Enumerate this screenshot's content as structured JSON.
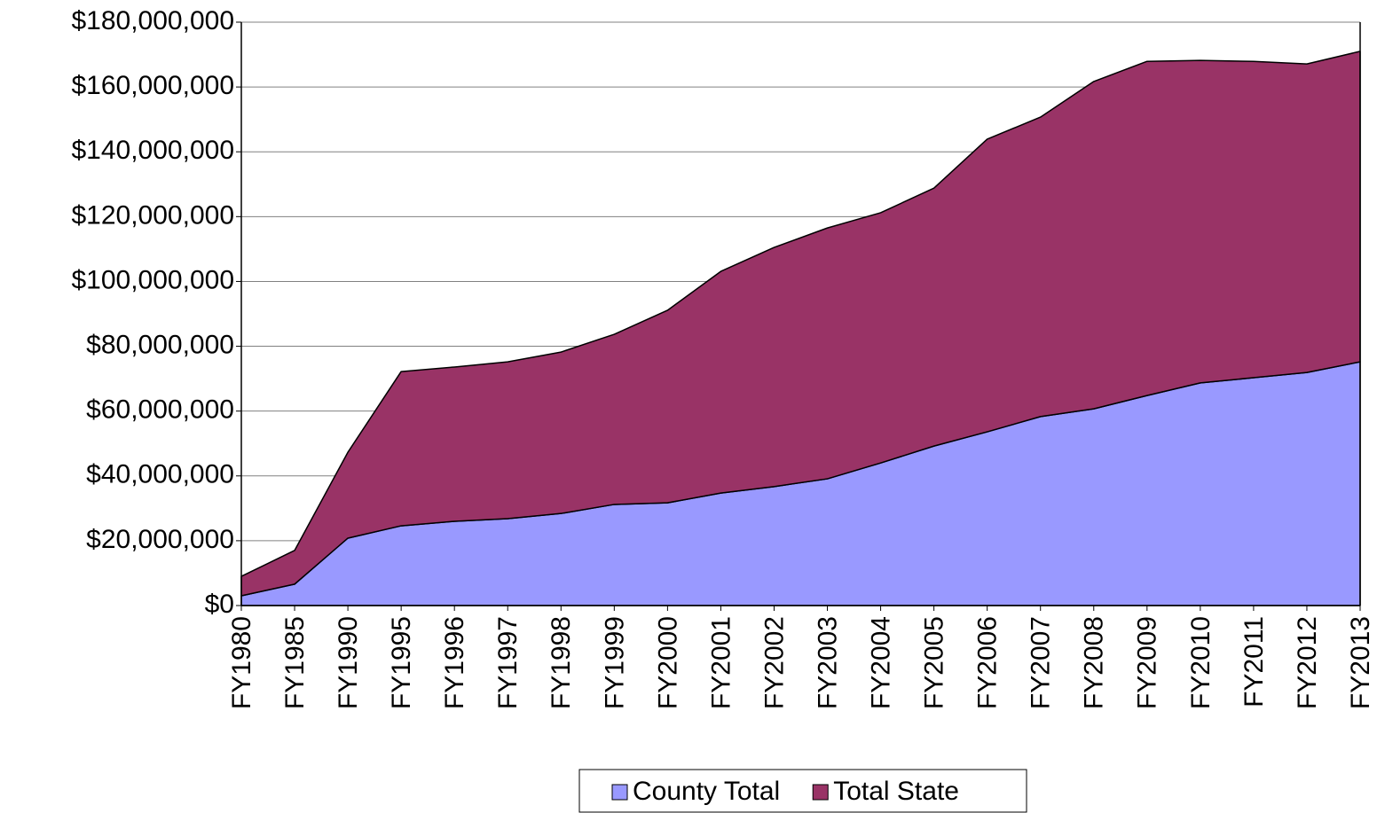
{
  "chart_data": {
    "type": "stacked_area",
    "categories": [
      "FY1980",
      "FY1985",
      "FY1990",
      "FY1995",
      "FY1996",
      "FY1997",
      "FY1998",
      "FY1999",
      "FY2000",
      "FY2001",
      "FY2002",
      "FY2003",
      "FY2004",
      "FY2005",
      "FY2006",
      "FY2007",
      "FY2008",
      "FY2009",
      "FY2010",
      "FY2011",
      "FY2012",
      "FY2013"
    ],
    "series": [
      {
        "name": "County Total",
        "color": "#9999ff",
        "values": [
          3000000,
          6600000,
          20800000,
          24600000,
          26000000,
          26800000,
          28400000,
          31200000,
          31700000,
          34700000,
          36700000,
          39100000,
          44000000,
          49200000,
          53600000,
          58300000,
          60700000,
          64800000,
          68700000,
          70300000,
          71900000,
          75200000
        ]
      },
      {
        "name": "Total State",
        "color": "#993366",
        "values": [
          6000000,
          10400000,
          26500000,
          47600000,
          47600000,
          48400000,
          49800000,
          52500000,
          59400000,
          68400000,
          73800000,
          77400000,
          77200000,
          79600000,
          90300000,
          92400000,
          101000000,
          103100000,
          99500000,
          97600000,
          95200000,
          95800000
        ]
      }
    ],
    "ylim": [
      0,
      180000000
    ],
    "yticks": [
      {
        "value": 0,
        "label": "$0"
      },
      {
        "value": 20000000,
        "label": "$20,000,000"
      },
      {
        "value": 40000000,
        "label": "$40,000,000"
      },
      {
        "value": 60000000,
        "label": "$60,000,000"
      },
      {
        "value": 80000000,
        "label": "$80,000,000"
      },
      {
        "value": 100000000,
        "label": "$100,000,000"
      },
      {
        "value": 120000000,
        "label": "$120,000,000"
      },
      {
        "value": 140000000,
        "label": "$140,000,000"
      },
      {
        "value": 160000000,
        "label": "$160,000,000"
      },
      {
        "value": 180000000,
        "label": "$180,000,000"
      }
    ],
    "grid": true,
    "legend": "bottom"
  }
}
